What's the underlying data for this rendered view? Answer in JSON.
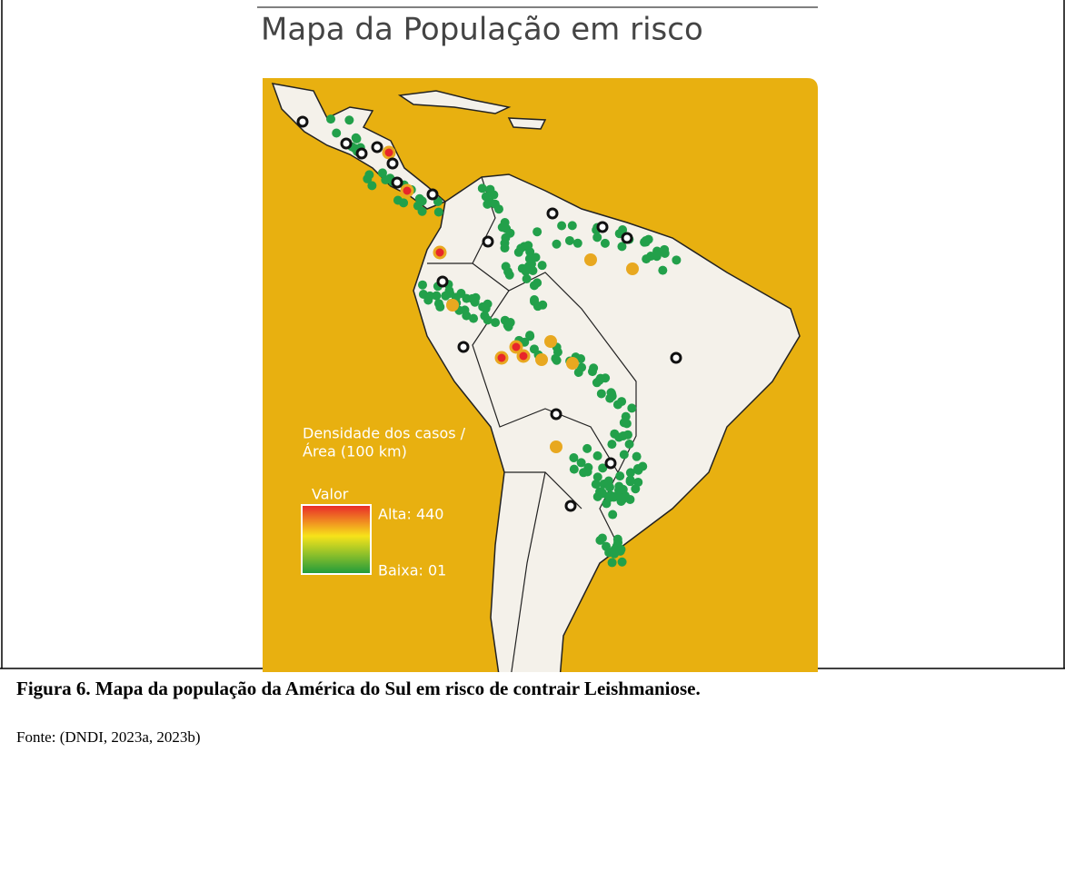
{
  "title": "Mapa da População em risco",
  "legend": {
    "title_lines": [
      "Densidade dos casos /",
      "Área (100 km)"
    ],
    "heading": "Valor",
    "high": "Alta: 440",
    "low": "Baixa: 01"
  },
  "caption": "Figura 6. Mapa da população da América do Sul em risco de contrair Leishmaniose.",
  "source": "Fonte: (DNDI, 2023a, 2023b)"
}
